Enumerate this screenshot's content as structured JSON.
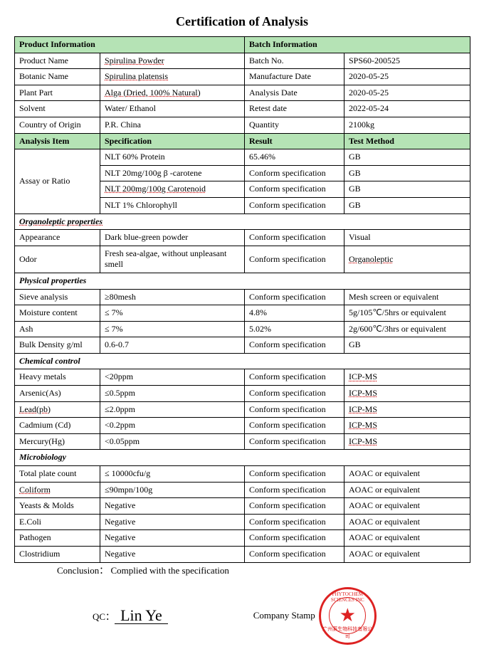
{
  "title": "Certification of Analysis",
  "headers": {
    "product_info": "Product Information",
    "batch_info": "Batch Information",
    "analysis_item": "Analysis Item",
    "specification": "Specification",
    "result": "Result",
    "test_method": "Test Method"
  },
  "product": {
    "name_label": "Product Name",
    "name": "Spirulina Powder",
    "botanic_label": "Botanic Name",
    "botanic": "Spirulina platensis",
    "plant_label": "Plant Part",
    "plant": "Alga (Dried, 100% Natural)",
    "solvent_label": "Solvent",
    "solvent": "Water/ Ethanol",
    "origin_label": "Country of Origin",
    "origin": "P.R. China"
  },
  "batch": {
    "no_label": "Batch No.",
    "no": "SPS60-200525",
    "mfg_label": "Manufacture Date",
    "mfg": "2020-05-25",
    "analysis_label": "Analysis Date",
    "analysis": "2020-05-25",
    "retest_label": "Retest date",
    "retest": "2022-05-24",
    "qty_label": "Quantity",
    "qty": "2100kg"
  },
  "assay": {
    "label": "Assay or Ratio",
    "rows": [
      {
        "spec": "NLT 60% Protein",
        "result": "65.46%",
        "method": "GB"
      },
      {
        "spec": "NLT 20mg/100g  β -carotene",
        "result": "Conform specification",
        "method": "GB"
      },
      {
        "spec": "NLT 200mg/100g Carotenoid",
        "result": "Conform specification",
        "method": "GB"
      },
      {
        "spec": "NLT 1% Chlorophyll",
        "result": "Conform specification",
        "method": "GB"
      }
    ]
  },
  "sections": {
    "organoleptic": "Organoleptic properties",
    "physical": "Physical properties",
    "chemical": "Chemical control",
    "micro": "Microbiology"
  },
  "organoleptic": [
    {
      "item": "Appearance",
      "spec": "Dark blue-green powder",
      "result": "Conform specification",
      "method": "Visual"
    },
    {
      "item": "Odor",
      "spec": "Fresh sea-algae, without unpleasant smell",
      "result": "Conform specification",
      "method": "Organoleptic"
    }
  ],
  "physical": [
    {
      "item": "Sieve analysis",
      "spec": "≥80mesh",
      "result": "Conform specification",
      "method": "Mesh screen or equivalent"
    },
    {
      "item": "Moisture content",
      "spec": "≤ 7%",
      "result": "4.8%",
      "method": "5g/105℃/5hrs or equivalent"
    },
    {
      "item": "Ash",
      "spec": "≤ 7%",
      "result": "5.02%",
      "method": "2g/600℃/3hrs or equivalent"
    },
    {
      "item": "Bulk Density g/ml",
      "spec": "0.6-0.7",
      "result": "Conform specification",
      "method": "GB"
    }
  ],
  "chemical": [
    {
      "item": "Heavy metals",
      "spec": "<20ppm",
      "result": "Conform specification",
      "method": "ICP-MS"
    },
    {
      "item": "Arsenic(As)",
      "spec": "≤0.5ppm",
      "result": "Conform specification",
      "method": "ICP-MS"
    },
    {
      "item": "Lead(pb)",
      "spec": "≤2.0ppm",
      "result": "Conform specification",
      "method": "ICP-MS"
    },
    {
      "item": "Cadmium (Cd)",
      "spec": "<0.2ppm",
      "result": "Conform specification",
      "method": "ICP-MS"
    },
    {
      "item": "Mercury(Hg)",
      "spec": "<0.05ppm",
      "result": "Conform specification",
      "method": "ICP-MS"
    }
  ],
  "micro": [
    {
      "item": "Total plate count",
      "spec": "≤ 10000cfu/g",
      "result": "Conform specification",
      "method": "AOAC or equivalent"
    },
    {
      "item": "Coliform",
      "spec": "≤90mpn/100g",
      "result": "Conform specification",
      "method": "AOAC or equivalent"
    },
    {
      "item": "Yeasts & Molds",
      "spec": "Negative",
      "result": "Conform specification",
      "method": "AOAC or equivalent"
    },
    {
      "item": "E.Coli",
      "spec": "Negative",
      "result": "Conform specification",
      "method": "AOAC or equivalent"
    },
    {
      "item": "Pathogen",
      "spec": "Negative",
      "result": "Conform specification",
      "method": "AOAC or equivalent"
    },
    {
      "item": "Clostridium",
      "spec": "Negative",
      "result": "Conform specification",
      "method": "AOAC or equivalent"
    }
  ],
  "footer": {
    "conclusion_label": "Conclusion：",
    "conclusion": "Complied with the specification",
    "qc_label": "QC：",
    "qc_sig": "Lin Ye",
    "stamp_label": "Company Stamp",
    "stamp_top": "PHYTOCHEM SCIENCES INC",
    "stamp_bot": "广州莱生物科技有限公司"
  },
  "underlined_items": [
    "Spirulina",
    "platensis",
    "Alga",
    "Organoleptic",
    "Carotenoid",
    "Coliform",
    "pb",
    "ICP-MS"
  ]
}
